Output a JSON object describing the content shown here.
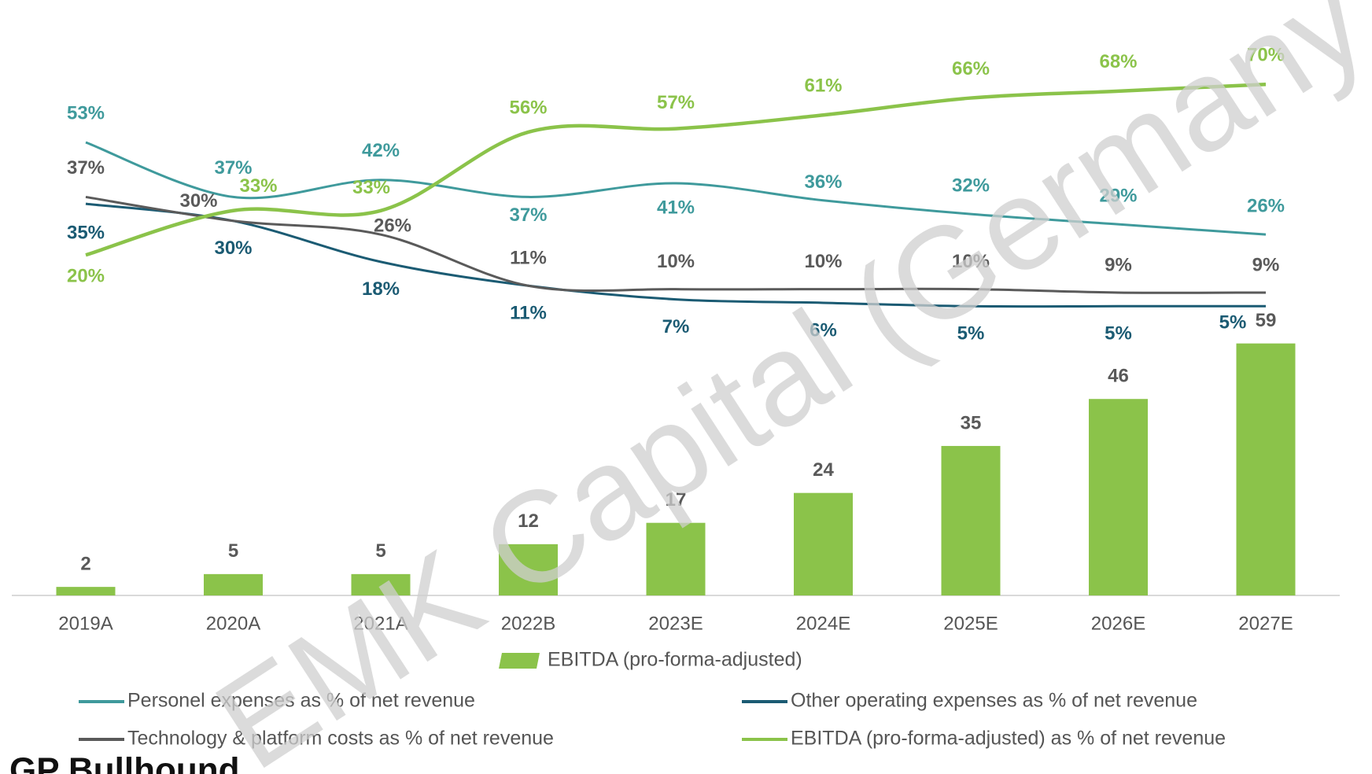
{
  "chart_data": {
    "type": "bar",
    "categories": [
      "2019A",
      "2020A",
      "2021A",
      "2022B",
      "2023E",
      "2024E",
      "2025E",
      "2026E",
      "2027E"
    ],
    "series": [
      {
        "name": "EBITDA (pro-forma-adjusted)",
        "type": "bar",
        "color": "#8bc34a",
        "values": [
          2,
          5,
          5,
          12,
          17,
          24,
          35,
          46,
          59
        ]
      },
      {
        "name": "Personel expenses as % of net revenue",
        "type": "line",
        "color": "#3f9a9c",
        "values": [
          53,
          37,
          42,
          37,
          41,
          36,
          32,
          29,
          26
        ],
        "value_labels": [
          "53%",
          "37%",
          "42%",
          "37%",
          "41%",
          "36%",
          "32%",
          "29%",
          "26%"
        ]
      },
      {
        "name": "Other operating expenses as % of net revenue",
        "type": "line",
        "color": "#1b5b73",
        "values": [
          35,
          30,
          18,
          11,
          7,
          6,
          5,
          5,
          5
        ],
        "value_labels": [
          "35%",
          "30%",
          "18%",
          "11%",
          "7%",
          "6%",
          "5%",
          "5%",
          "5%"
        ]
      },
      {
        "name": "Technology & platform costs as % of net revenue",
        "type": "line",
        "color": "#5a5a5a",
        "values": [
          37,
          30,
          26,
          11,
          10,
          10,
          10,
          9,
          9
        ],
        "value_labels": [
          "37%",
          "30%",
          "26%",
          "11%",
          "10%",
          "10%",
          "10%",
          "9%",
          "9%"
        ]
      },
      {
        "name": "EBITDA (pro-forma-adjusted) as % of net revenue",
        "type": "line",
        "color": "#8bc34a",
        "values": [
          20,
          33,
          33,
          56,
          57,
          61,
          66,
          68,
          70
        ],
        "value_labels": [
          "20%",
          "33%",
          "33%",
          "56%",
          "57%",
          "61%",
          "66%",
          "68%",
          "70%"
        ]
      }
    ],
    "watermark": "EMK Capital (Germany)",
    "logo_text": "GP Bullhound"
  }
}
